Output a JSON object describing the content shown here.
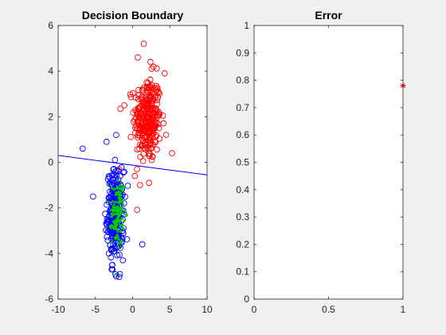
{
  "figure": {
    "background": "#f0f0f0"
  },
  "chart_data": [
    {
      "type": "scatter",
      "title": "Decision Boundary",
      "xlim": [
        -10,
        10
      ],
      "ylim": [
        -6,
        6
      ],
      "x_ticks": [
        -10,
        -5,
        0,
        5,
        10
      ],
      "y_ticks": [
        -6,
        -4,
        -2,
        0,
        2,
        4,
        6
      ],
      "grid": false,
      "series": [
        {
          "marker": "circle",
          "color": "#ff0000",
          "center": [
            2.0,
            1.9
          ],
          "spread": [
            0.9,
            0.95
          ],
          "count": 280,
          "extra_points": [
            [
              1.5,
              5.2
            ],
            [
              0.7,
              4.6
            ],
            [
              2.4,
              4.4
            ],
            [
              4.3,
              3.9
            ],
            [
              -1.1,
              2.5
            ],
            [
              5.3,
              0.4
            ],
            [
              0.3,
              -0.6
            ],
            [
              1.0,
              -1.0
            ],
            [
              2.2,
              -0.9
            ],
            [
              -1.8,
              -0.3
            ]
          ]
        },
        {
          "marker": "circle",
          "color": "#0000ff",
          "center": [
            -2.3,
            -2.3
          ],
          "spread": [
            0.55,
            0.95
          ],
          "count": 280,
          "extra_points": [
            [
              -2.2,
              1.2
            ],
            [
              -6.7,
              0.6
            ],
            [
              -5.3,
              -1.5
            ],
            [
              1.3,
              -3.6
            ],
            [
              -2.7,
              -4.7
            ],
            [
              -2.2,
              -5.0
            ],
            [
              -1.7,
              -4.9
            ],
            [
              -3.5,
              0.9
            ]
          ]
        },
        {
          "marker": "dot",
          "color": "#00cc00",
          "center": [
            -2.0,
            -2.2
          ],
          "spread": [
            0.4,
            0.7
          ],
          "count": 120
        }
      ],
      "boundary_line": {
        "x": [
          -10,
          10
        ],
        "y": [
          0.3,
          -0.55
        ],
        "color": "#0000ff"
      }
    },
    {
      "type": "scatter",
      "title": "Error",
      "xlim": [
        0,
        1
      ],
      "ylim": [
        0,
        1
      ],
      "x_ticks": [
        0,
        0.5,
        1
      ],
      "y_ticks": [
        0,
        0.1,
        0.2,
        0.3,
        0.4,
        0.5,
        0.6,
        0.7,
        0.8,
        0.9,
        1
      ],
      "grid": false,
      "series": [
        {
          "marker": "star",
          "color": "#ff0000",
          "points": [
            [
              1,
              0.78
            ]
          ]
        }
      ]
    }
  ]
}
